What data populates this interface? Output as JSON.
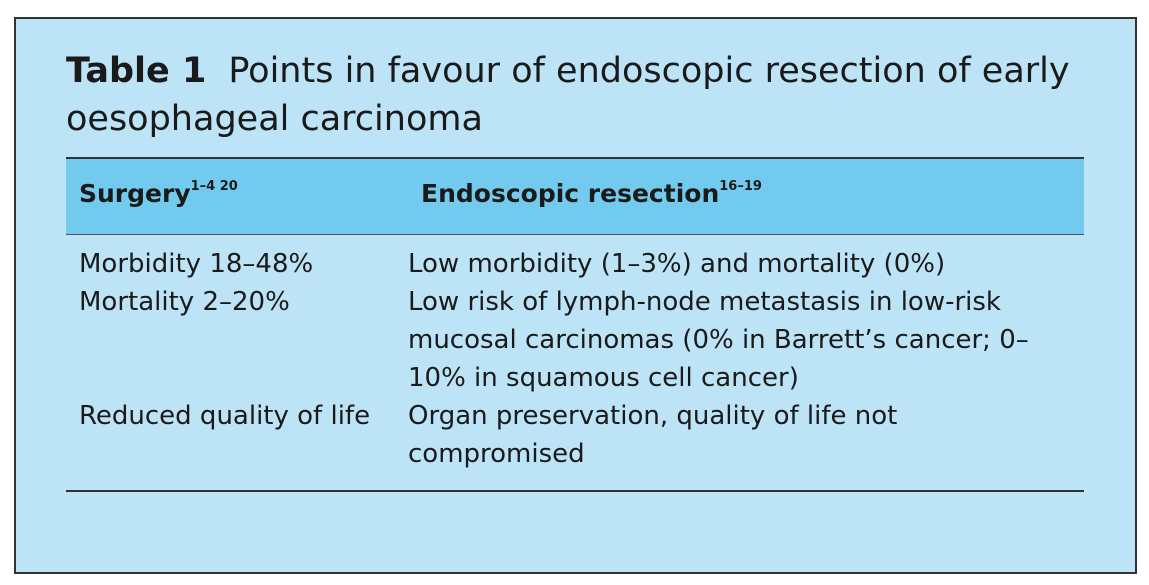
{
  "table": {
    "label": "Table 1",
    "title": "Points in favour of endoscopic resection of early oesophageal carcinoma",
    "header": [
      {
        "text": "Surgery",
        "sup": "1–4 20"
      },
      {
        "text": "Endoscopic resection",
        "sup": "16–19"
      }
    ],
    "rows": [
      [
        "Morbidity 18–48%",
        "Low morbidity (1–3%) and mortality (0%)"
      ],
      [
        "Mortality 2–20%",
        "Low risk of lymph-node metastasis in low-risk mucosal carcinomas (0% in Barrett’s cancer; 0–10% in squamous cell cancer)"
      ],
      [
        "Reduced quality of life",
        "Organ preservation, quality of life not compromised"
      ]
    ]
  }
}
